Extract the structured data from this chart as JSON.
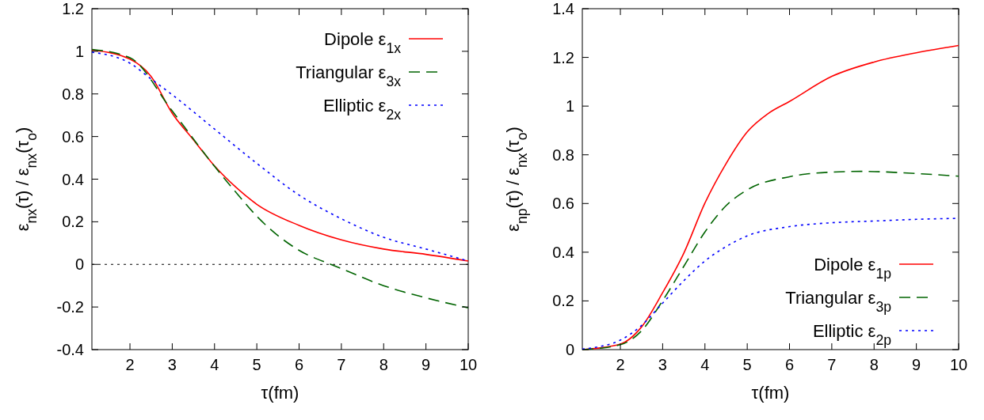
{
  "chart_data": [
    {
      "type": "line",
      "xlabel": "τ(fm)",
      "ylabel": "ε$_{nx}$(τ) / ε$_{nx}$(τ$_{o}$)",
      "xlim": [
        1.1,
        10
      ],
      "ylim": [
        -0.4,
        1.2
      ],
      "xticks": [
        2,
        3,
        4,
        5,
        6,
        7,
        8,
        9,
        10
      ],
      "yticks": [
        -0.4,
        -0.2,
        0,
        0.2,
        0.4,
        0.6,
        0.8,
        1,
        1.2
      ],
      "legend": "top right",
      "grid": false,
      "ref_lines": [
        {
          "axis": "y",
          "value": 0,
          "color": "#000000",
          "line_style": "dotted"
        }
      ],
      "series": [
        {
          "name": "Dipole ε$_{1x}$",
          "color": "#ff0000",
          "line_style": "solid",
          "x": [
            1.1,
            2,
            2.5,
            3,
            3.5,
            4,
            4.5,
            5,
            6,
            7,
            8,
            9,
            10
          ],
          "values": [
            1.006,
            0.963,
            0.882,
            0.709,
            0.585,
            0.462,
            0.363,
            0.282,
            0.183,
            0.115,
            0.072,
            0.047,
            0.016
          ]
        },
        {
          "name": "Triangular ε$_{3x}$",
          "color": "#006400",
          "line_style": "dashed",
          "x": [
            1.1,
            2,
            3,
            4,
            4.5,
            5,
            6,
            6.75,
            7,
            8,
            9,
            10
          ],
          "values": [
            1.009,
            0.97,
            0.72,
            0.46,
            0.34,
            0.226,
            0.066,
            0,
            -0.02,
            -0.1,
            -0.157,
            -0.204
          ]
        },
        {
          "name": "Elliptic ε$_{2x}$",
          "color": "#0000ff",
          "line_style": "dotted",
          "x": [
            1.1,
            2,
            2.5,
            3,
            4,
            5,
            6,
            7,
            8,
            9,
            10
          ],
          "values": [
            0.996,
            0.944,
            0.87,
            0.796,
            0.635,
            0.474,
            0.325,
            0.214,
            0.127,
            0.072,
            0.016
          ]
        }
      ]
    },
    {
      "type": "line",
      "xlabel": "τ(fm)",
      "ylabel": "ε$_{np}$(τ) / ε$_{nx}$(τ$_{o}$)",
      "xlim": [
        1.1,
        10
      ],
      "ylim": [
        0,
        1.4
      ],
      "xticks": [
        2,
        3,
        4,
        5,
        6,
        7,
        8,
        9,
        10
      ],
      "yticks": [
        0,
        0.2,
        0.4,
        0.6,
        0.8,
        1,
        1.2,
        1.4
      ],
      "legend": "bottom right",
      "grid": false,
      "series": [
        {
          "name": "Dipole ε$_{1p}$",
          "color": "#ff0000",
          "line_style": "solid",
          "x": [
            1.1,
            2,
            2.5,
            3,
            3.5,
            4,
            4.5,
            5,
            5.5,
            6,
            7,
            8,
            9,
            10
          ],
          "values": [
            0,
            0.023,
            0.093,
            0.234,
            0.396,
            0.602,
            0.764,
            0.894,
            0.97,
            1.019,
            1.122,
            1.181,
            1.219,
            1.249
          ]
        },
        {
          "name": "Triangular ε$_{3p}$",
          "color": "#006400",
          "line_style": "dashed",
          "x": [
            1.1,
            2,
            2.5,
            3,
            3.5,
            4,
            4.5,
            5,
            6,
            7,
            7.7,
            9,
            10
          ],
          "values": [
            0,
            0.02,
            0.077,
            0.201,
            0.342,
            0.483,
            0.591,
            0.656,
            0.71,
            0.729,
            0.732,
            0.723,
            0.712
          ]
        },
        {
          "name": "Elliptic ε$_{2p}$",
          "color": "#0000ff",
          "line_style": "dotted",
          "x": [
            1.1,
            1.5,
            2,
            2.5,
            3,
            3.5,
            4,
            4.5,
            5,
            6,
            7,
            8,
            9,
            10
          ],
          "values": [
            0.002,
            0.012,
            0.039,
            0.099,
            0.191,
            0.283,
            0.364,
            0.423,
            0.467,
            0.505,
            0.521,
            0.528,
            0.535,
            0.539
          ]
        }
      ]
    }
  ]
}
